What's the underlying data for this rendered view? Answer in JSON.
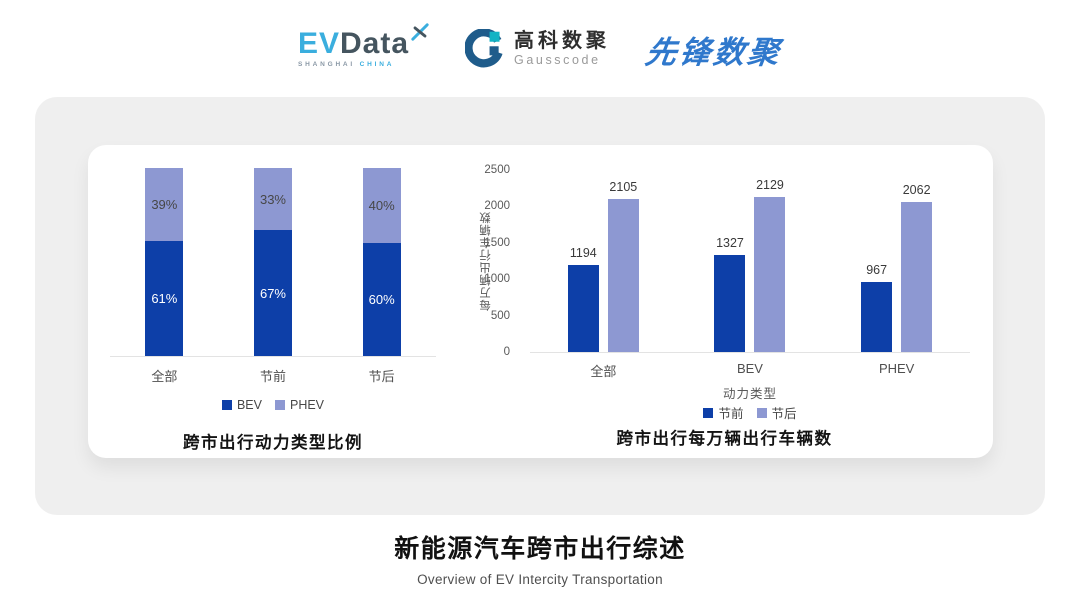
{
  "header": {
    "evdata": {
      "ev": "EV",
      "data": "Data",
      "sub_left": "SHANGHAI",
      "sub_right": "CHINA"
    },
    "gausscode": {
      "name_cn": "高科数聚",
      "name_en": "Gausscode"
    },
    "pioneer": {
      "name_cn": "先锋数聚"
    }
  },
  "colors": {
    "series": [
      "#0d3fa8",
      "#8d98d2"
    ],
    "accent_cyan": "#3aaede",
    "gauss_blue": "#1f5c8b",
    "gauss_teal": "#12b3c4",
    "pioneer_blue": "#2f78cc",
    "panel_gray": "#efefef"
  },
  "chart_data": [
    {
      "type": "bar",
      "variant": "stacked-percent",
      "title": "跨市出行动力类型比例",
      "categories": [
        "全部",
        "节前",
        "节后"
      ],
      "series": [
        {
          "name": "BEV",
          "values": [
            61,
            67,
            60
          ]
        },
        {
          "name": "PHEV",
          "values": [
            39,
            33,
            40
          ]
        }
      ],
      "unit": "%",
      "ylim": [
        0,
        100
      ],
      "grid": false,
      "legend_position": "bottom"
    },
    {
      "type": "bar",
      "variant": "grouped",
      "title": "跨市出行每万辆出行车辆数",
      "categories": [
        "全部",
        "BEV",
        "PHEV"
      ],
      "series": [
        {
          "name": "节前",
          "values": [
            1194,
            1327,
            967
          ]
        },
        {
          "name": "节后",
          "values": [
            2105,
            2129,
            2062
          ]
        }
      ],
      "xlabel": "动力类型",
      "ylabel": "每万辆出行车辆数",
      "yticks": [
        0,
        500,
        1000,
        1500,
        2000,
        2500
      ],
      "ylim": [
        0,
        2500
      ],
      "grid": false,
      "legend_position": "bottom"
    }
  ],
  "footer": {
    "title": "新能源汽车跨市出行综述",
    "subtitle": "Overview of EV Intercity Transportation"
  }
}
